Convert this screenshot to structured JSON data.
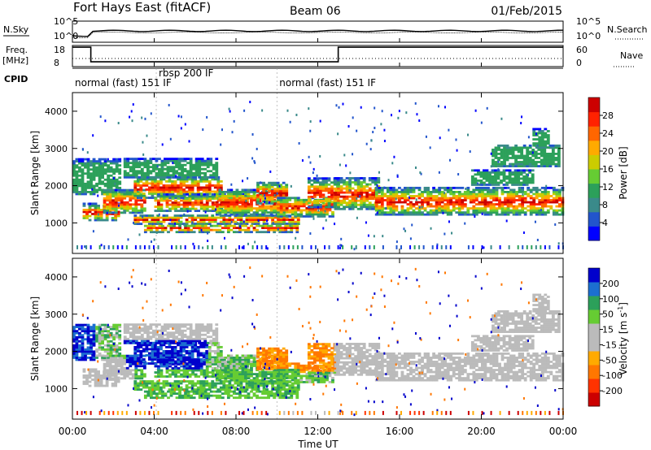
{
  "header": {
    "station": "Fort Hays East (fitACF)",
    "beam": "Beam 06",
    "date": "01/Feb/2015"
  },
  "labels": {
    "nsky": "N.Sky",
    "nsearch": "N.Search",
    "freq": "Freq.",
    "mhz": "[MHz]",
    "nave": "Nave",
    "cpid": "CPID",
    "time_axis": "Time UT",
    "slant_range": "Slant Range [km]",
    "power_unit": "Power [dB]",
    "velocity_unit": "Velocity [m s",
    "velocity_exp": "-1",
    "velocity_close": "]"
  },
  "mode_labels": [
    {
      "text": "normal (fast) 151 IF",
      "t": 0.0
    },
    {
      "text": "rbsp 200 IF",
      "t": 4.1
    },
    {
      "text": "normal (fast) 151 IF",
      "t": 10.0
    }
  ],
  "colors": {
    "power": [
      "#0000ff",
      "#2255cc",
      "#3a8a8a",
      "#2ca05a",
      "#66cc33",
      "#cccc00",
      "#ffaa00",
      "#ff6600",
      "#ff2200",
      "#cc0000"
    ],
    "velocity": [
      "#cc0000",
      "#ff3300",
      "#ff7700",
      "#ffaa00",
      "#bbbbbb",
      "#bbbbbb",
      "#66cc33",
      "#2ca05a",
      "#1c6fd0",
      "#0000cc"
    ],
    "ground_scatter": "#bbbbbb"
  },
  "chart_data": [
    {
      "type": "line",
      "name": "noise",
      "x_range": [
        0,
        24
      ],
      "left_ticks": [
        "10^5",
        "10^0"
      ],
      "right_ticks": [
        "10^5",
        "10^0"
      ]
    },
    {
      "type": "line",
      "name": "frequency",
      "left_ticks": [
        18,
        8
      ],
      "right_ticks": [
        60,
        0
      ],
      "freq_steps": [
        [
          0,
          0.9,
          17.2
        ],
        [
          0.9,
          13.0,
          10.3
        ],
        [
          13.0,
          24.0,
          17.2
        ]
      ],
      "nave": 23
    },
    {
      "type": "heatmap",
      "name": "power",
      "xlabel": "Time UT",
      "ylabel": "Slant Range [km]",
      "x_range": [
        0,
        24
      ],
      "y_range": [
        180,
        4500
      ],
      "y_ticks": [
        1000,
        2000,
        3000,
        4000
      ],
      "colorbar_ticks": [
        4,
        8,
        12,
        16,
        20,
        24,
        28
      ],
      "colorbar_range": [
        0,
        32
      ],
      "colorbar_label": "Power [dB]"
    },
    {
      "type": "heatmap",
      "name": "velocity",
      "xlabel": "Time UT",
      "ylabel": "Slant Range [km]",
      "x_range": [
        0,
        24
      ],
      "y_range": [
        180,
        4500
      ],
      "y_ticks": [
        1000,
        2000,
        3000,
        4000
      ],
      "x_ticks": [
        "00:00",
        "04:00",
        "08:00",
        "12:00",
        "16:00",
        "20:00",
        "00:00"
      ],
      "colorbar_ticks": [
        -200,
        -100,
        -50,
        -15,
        15,
        50,
        100,
        200
      ],
      "colorbar_label": "Velocity [m s-1]"
    }
  ],
  "echo_bands": [
    {
      "t0": 0.0,
      "t1": 2.3,
      "r0": 1750,
      "r1": 2700
    },
    {
      "t0": 0.5,
      "t1": 2.2,
      "r0": 1050,
      "r1": 1500
    },
    {
      "t0": 1.5,
      "t1": 3.5,
      "r0": 1250,
      "r1": 1900
    },
    {
      "t0": 3.0,
      "t1": 7.3,
      "r0": 1650,
      "r1": 2250
    },
    {
      "t0": 2.5,
      "t1": 7.0,
      "r0": 2200,
      "r1": 2700
    },
    {
      "t0": 4.0,
      "t1": 8.5,
      "r0": 1300,
      "r1": 1750
    },
    {
      "t0": 3.0,
      "t1": 11.0,
      "r0": 950,
      "r1": 1200
    },
    {
      "t0": 3.5,
      "t1": 11.0,
      "r0": 730,
      "r1": 950
    },
    {
      "t0": 7.0,
      "t1": 10.5,
      "r0": 1200,
      "r1": 1900
    },
    {
      "t0": 9.0,
      "t1": 10.5,
      "r0": 1500,
      "r1": 2100
    },
    {
      "t0": 10.0,
      "t1": 12.8,
      "r0": 1150,
      "r1": 1700
    },
    {
      "t0": 11.5,
      "t1": 13.0,
      "r0": 1400,
      "r1": 2200
    },
    {
      "t0": 12.8,
      "t1": 15.0,
      "r0": 1350,
      "r1": 2200
    },
    {
      "t0": 14.8,
      "t1": 24.0,
      "r0": 1200,
      "r1": 1950
    },
    {
      "t0": 19.5,
      "t1": 22.5,
      "r0": 2000,
      "r1": 2400
    },
    {
      "t0": 20.5,
      "t1": 23.8,
      "r0": 2500,
      "r1": 3100
    },
    {
      "t0": 22.5,
      "t1": 23.3,
      "r0": 3000,
      "r1": 3500
    }
  ]
}
